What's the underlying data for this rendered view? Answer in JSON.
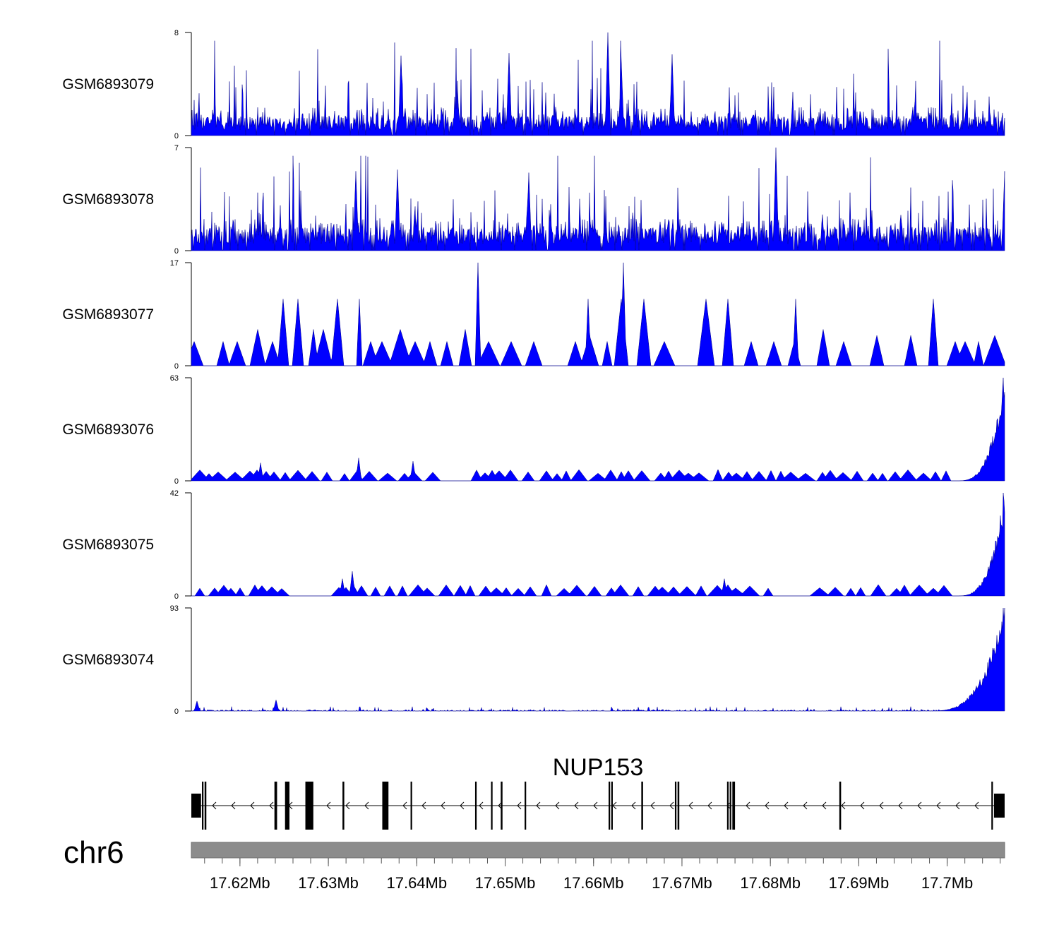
{
  "chart_data": {
    "type": "area",
    "title": "",
    "xlabel": "",
    "ylabel": "",
    "chromosome": "chr6",
    "x_range_mb": [
      17.6145,
      17.7065
    ],
    "x_ticks": [
      {
        "value": 17.62,
        "label": "17.62Mb"
      },
      {
        "value": 17.63,
        "label": "17.63Mb"
      },
      {
        "value": 17.64,
        "label": "17.64Mb"
      },
      {
        "value": 17.65,
        "label": "17.65Mb"
      },
      {
        "value": 17.66,
        "label": "17.66Mb"
      },
      {
        "value": 17.67,
        "label": "17.67Mb"
      },
      {
        "value": 17.68,
        "label": "17.68Mb"
      },
      {
        "value": 17.69,
        "label": "17.69Mb"
      },
      {
        "value": 17.7,
        "label": "17.7Mb"
      }
    ],
    "fill_color": "#0000ff",
    "series": [
      {
        "name": "GSM6893079",
        "ymax": 8,
        "ymin": 0,
        "ymax_label": "8",
        "ymin_label": "0",
        "pattern": "dense-noise",
        "baseline": 1.2,
        "spike_scale": 5.5,
        "end_peak": 0,
        "seed": 11,
        "peaks": [
          {
            "x": 17.6616,
            "y": 8.0
          },
          {
            "x": 17.6382,
            "y": 6.2
          },
          {
            "x": 17.6504,
            "y": 6.4
          },
          {
            "x": 17.6689,
            "y": 6.3
          },
          {
            "x": 17.6631,
            "y": 5.8
          }
        ]
      },
      {
        "name": "GSM6893078",
        "ymax": 7,
        "ymin": 0,
        "ymax_label": "7",
        "ymin_label": "0",
        "pattern": "dense-noise",
        "baseline": 1.3,
        "spike_scale": 4.7,
        "end_peak": 0,
        "seed": 23,
        "peaks": [
          {
            "x": 17.6806,
            "y": 7.0
          },
          {
            "x": 17.6378,
            "y": 5.5
          },
          {
            "x": 17.6331,
            "y": 5.4
          },
          {
            "x": 17.7065,
            "y": 5.4
          },
          {
            "x": 17.6527,
            "y": 5.3
          }
        ]
      },
      {
        "name": "GSM6893077",
        "ymax": 17,
        "ymin": 0,
        "ymax_label": "17",
        "ymin_label": "0",
        "pattern": "sparse-triangles",
        "baseline": 0,
        "spike_scale": 0,
        "end_peak": 0,
        "seed": 37,
        "peaks": [
          {
            "x": 17.6469,
            "y": 17.0
          },
          {
            "x": 17.6634,
            "y": 17.0
          },
          {
            "x": 17.6335,
            "y": 11.0
          },
          {
            "x": 17.6594,
            "y": 11.0
          },
          {
            "x": 17.6829,
            "y": 11.0
          }
        ]
      },
      {
        "name": "GSM6893076",
        "ymax": 63,
        "ymin": 0,
        "ymax_label": "63",
        "ymin_label": "0",
        "pattern": "low-triangles",
        "baseline": 0,
        "spike_scale": 0,
        "end_peak": 63,
        "seed": 41,
        "peaks": [
          {
            "x": 17.6334,
            "y": 14.0
          },
          {
            "x": 17.6396,
            "y": 12.0
          },
          {
            "x": 17.6223,
            "y": 11.0
          }
        ]
      },
      {
        "name": "GSM6893075",
        "ymax": 42,
        "ymin": 0,
        "ymax_label": "42",
        "ymin_label": "0",
        "pattern": "low-triangles",
        "baseline": 0,
        "spike_scale": 0,
        "end_peak": 42,
        "seed": 53,
        "peaks": [
          {
            "x": 17.6327,
            "y": 10.0
          },
          {
            "x": 17.6316,
            "y": 7.0
          },
          {
            "x": 17.6748,
            "y": 7.0
          }
        ]
      },
      {
        "name": "GSM6893074",
        "ymax": 93,
        "ymin": 0,
        "ymax_label": "93",
        "ymin_label": "0",
        "pattern": "flat-noise",
        "baseline": 0.6,
        "spike_scale": 3,
        "end_peak": 93,
        "seed": 67,
        "peaks": [
          {
            "x": 17.6241,
            "y": 10.0
          },
          {
            "x": 17.6151,
            "y": 9.0
          }
        ]
      }
    ],
    "gene": {
      "name": "NUP153",
      "strand": "-",
      "exons": [
        [
          17.6145,
          17.6156
        ],
        [
          17.6157,
          17.6158
        ],
        [
          17.616,
          17.6162
        ],
        [
          17.6239,
          17.6242
        ],
        [
          17.6251,
          17.6256
        ],
        [
          17.6274,
          17.6283
        ],
        [
          17.6316,
          17.6318
        ],
        [
          17.6361,
          17.6368
        ],
        [
          17.6393,
          17.6394
        ],
        [
          17.6466,
          17.6467
        ],
        [
          17.6484,
          17.6485
        ],
        [
          17.6495,
          17.6497
        ],
        [
          17.6522,
          17.6523
        ],
        [
          17.6617,
          17.6618
        ],
        [
          17.662,
          17.6621
        ],
        [
          17.6654,
          17.6656
        ],
        [
          17.6692,
          17.6693
        ],
        [
          17.6695,
          17.6697
        ],
        [
          17.6751,
          17.6752
        ],
        [
          17.6754,
          17.6755
        ],
        [
          17.6757,
          17.676
        ],
        [
          17.6878,
          17.688
        ],
        [
          17.705,
          17.7051
        ],
        [
          17.7053,
          17.7065
        ]
      ]
    }
  }
}
